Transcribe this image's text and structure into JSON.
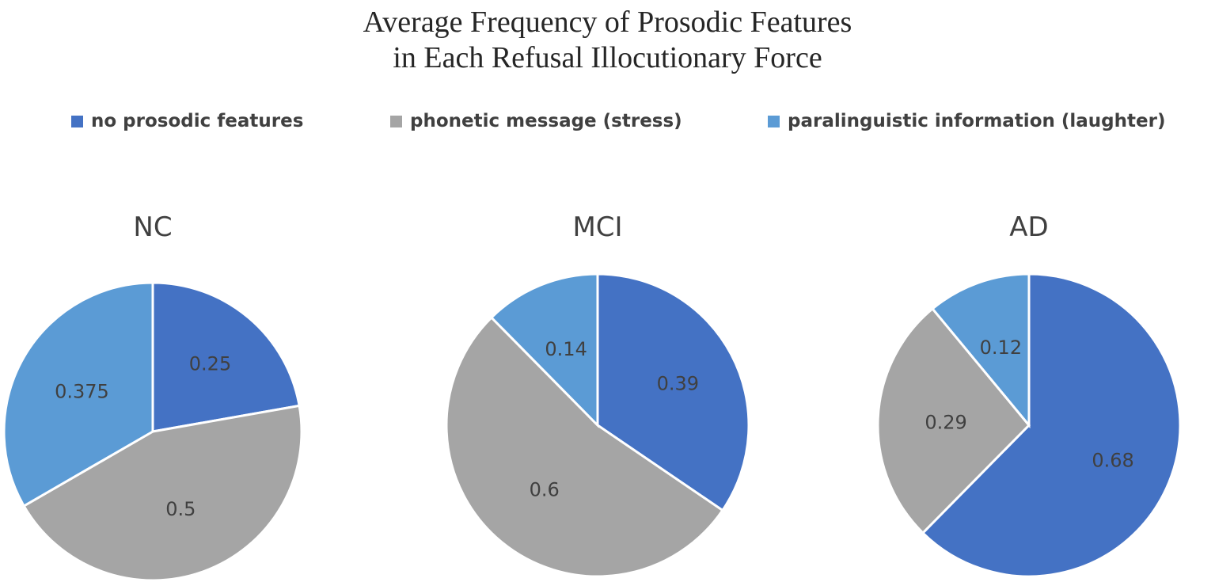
{
  "title_line1": "Average Frequency of Prosodic Features",
  "title_line2": "in Each Refusal Illocutionary Force",
  "legend": [
    {
      "label": "no prosodic features",
      "color": "#4472C4"
    },
    {
      "label": "phonetic message (stress)",
      "color": "#A5A5A5"
    },
    {
      "label": "paralinguistic information (laughter)",
      "color": "#5B9BD5"
    }
  ],
  "chart_data": [
    {
      "type": "pie",
      "title": "NC",
      "labels": [
        "no prosodic features",
        "phonetic message (stress)",
        "paralinguistic information (laughter)"
      ],
      "values": [
        0.25,
        0.5,
        0.375
      ],
      "data_labels": [
        "0.25",
        "0.5",
        "0.375"
      ],
      "colors": [
        "#4472C4",
        "#A5A5A5",
        "#5B9BD5"
      ]
    },
    {
      "type": "pie",
      "title": "MCI",
      "labels": [
        "no prosodic features",
        "phonetic message (stress)",
        "paralinguistic information (laughter)"
      ],
      "values": [
        0.39,
        0.6,
        0.14
      ],
      "data_labels": [
        "0.39",
        "0.6",
        "0.14"
      ],
      "colors": [
        "#4472C4",
        "#A5A5A5",
        "#5B9BD5"
      ]
    },
    {
      "type": "pie",
      "title": "AD",
      "labels": [
        "no prosodic features",
        "phonetic message (stress)",
        "paralinguistic information (laughter)"
      ],
      "values": [
        0.68,
        0.29,
        0.12
      ],
      "data_labels": [
        "0.68",
        "0.29",
        "0.12"
      ],
      "colors": [
        "#4472C4",
        "#A5A5A5",
        "#5B9BD5"
      ]
    }
  ]
}
